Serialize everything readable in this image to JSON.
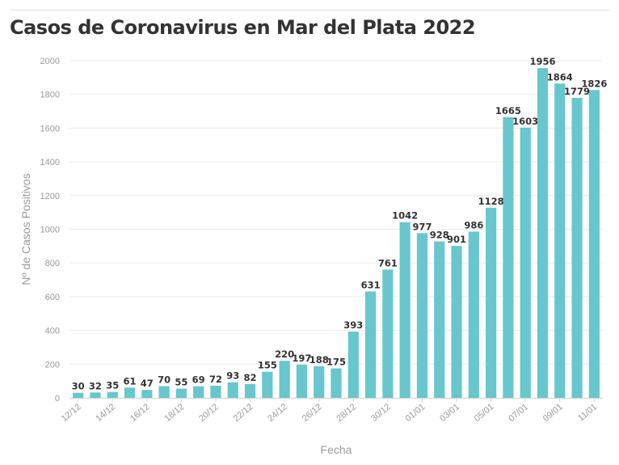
{
  "chart_data": {
    "type": "bar",
    "title": "Casos de Coronavirus en Mar del Plata 2022",
    "xlabel": "Fecha",
    "ylabel": "Nº de Casos Positivos",
    "ylim": [
      0,
      2000
    ],
    "yticks": [
      0,
      200,
      400,
      600,
      800,
      1000,
      1200,
      1400,
      1600,
      1800,
      2000
    ],
    "grid": true,
    "bar_color": "#68c7cd",
    "categories": [
      "12/12",
      "13/12",
      "14/12",
      "15/12",
      "16/12",
      "17/12",
      "18/12",
      "19/12",
      "20/12",
      "21/12",
      "22/12",
      "23/12",
      "24/12",
      "25/12",
      "26/12",
      "27/12",
      "28/12",
      "29/12",
      "30/12",
      "31/12",
      "01/01",
      "02/01",
      "03/01",
      "04/01",
      "05/01",
      "06/01",
      "07/01",
      "08/01",
      "09/01",
      "10/01",
      "11/01"
    ],
    "tick_labels": [
      "12/12",
      "14/12",
      "16/12",
      "18/12",
      "20/12",
      "22/12",
      "24/12",
      "26/12",
      "28/12",
      "30/12",
      "01/01",
      "03/01",
      "05/01",
      "07/01",
      "09/01",
      "11/01"
    ],
    "values": [
      30,
      32,
      35,
      61,
      47,
      70,
      55,
      69,
      72,
      93,
      82,
      155,
      220,
      197,
      188,
      175,
      393,
      631,
      761,
      1042,
      977,
      928,
      901,
      986,
      1128,
      1665,
      1603,
      1956,
      1864,
      1779,
      1826
    ]
  }
}
